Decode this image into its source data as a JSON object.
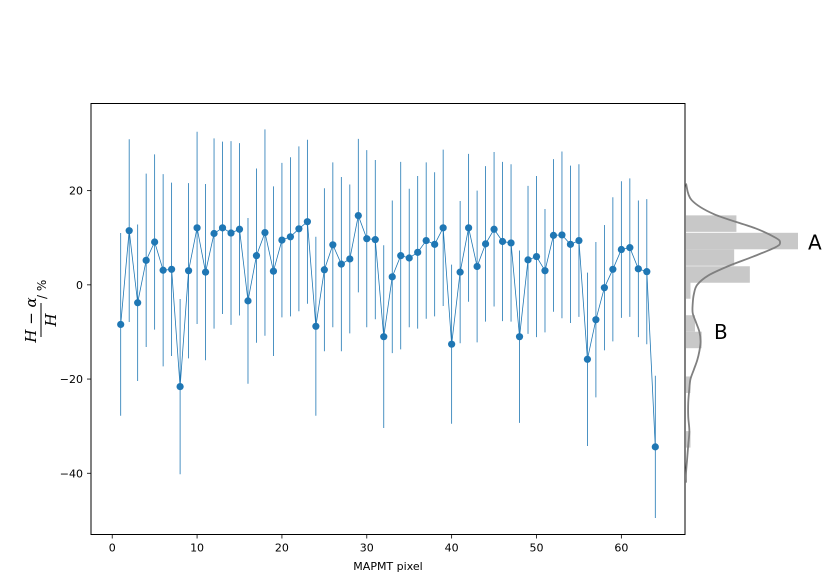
{
  "chart_data": {
    "type": "scatter",
    "xlabel": "MAPMT pixel",
    "ylabel": "(H − α)/H / %",
    "ylabel_parts": {
      "numerator": "H − α",
      "denominator": "H",
      "unit": "/ %"
    },
    "xlim": [
      -2.5,
      67.5
    ],
    "ylim": [
      -53,
      38.5
    ],
    "xticks": [
      0,
      10,
      20,
      30,
      40,
      50,
      60
    ],
    "yticks": [
      -40,
      -20,
      0,
      20
    ],
    "grid": false,
    "marker_color": "#1f77b4",
    "series": [
      {
        "x": [
          1,
          2,
          3,
          4,
          5,
          6,
          7,
          8,
          9,
          10,
          11,
          12,
          13,
          14,
          15,
          16,
          17,
          18,
          19,
          20,
          21,
          22,
          23,
          24,
          25,
          26,
          27,
          28,
          29,
          30,
          31,
          32,
          33,
          34,
          35,
          36,
          37,
          38,
          39,
          40,
          41,
          42,
          43,
          44,
          45,
          46,
          47,
          48,
          49,
          50,
          51,
          52,
          53,
          54,
          55,
          56,
          57,
          58,
          59,
          60,
          61,
          62,
          63,
          64
        ],
        "y": [
          -8.4,
          11.5,
          -3.8,
          5.2,
          9.1,
          3.1,
          3.3,
          -21.6,
          3.0,
          12.1,
          2.7,
          10.9,
          12.1,
          11.0,
          11.8,
          -3.4,
          6.2,
          11.1,
          2.9,
          9.5,
          10.2,
          11.9,
          13.4,
          -8.8,
          3.2,
          8.5,
          4.4,
          5.5,
          14.7,
          9.8,
          9.6,
          -11.0,
          1.7,
          6.2,
          5.7,
          6.9,
          9.4,
          8.6,
          12.1,
          -12.6,
          2.7,
          12.1,
          3.9,
          8.7,
          11.8,
          9.2,
          8.9,
          -11.0,
          5.3,
          6.0,
          3.0,
          10.5,
          10.6,
          8.6,
          9.4,
          -15.8,
          -7.4,
          -0.6,
          3.3,
          7.5,
          7.9,
          3.4,
          2.8,
          -34.4
        ],
        "yerr_low": [
          19.4,
          19.4,
          16.6,
          18.4,
          18.6,
          20.4,
          18.4,
          18.6,
          18.6,
          20.4,
          18.7,
          20.2,
          18.3,
          19.5,
          18.3,
          17.6,
          18.5,
          21.9,
          18.0,
          16.4,
          16.9,
          17.5,
          17.4,
          19.0,
          17.3,
          17.5,
          18.5,
          15.8,
          16.3,
          18.8,
          16.9,
          19.4,
          16.2,
          19.9,
          14.7,
          16.2,
          16.6,
          15.3,
          16.6,
          16.9,
          15.1,
          15.7,
          16.1,
          16.5,
          16.4,
          16.9,
          16.7,
          18.3,
          15.7,
          17.1,
          13.1,
          16.2,
          17.7,
          16.7,
          16.2,
          18.4,
          16.5,
          13.3,
          15.3,
          14.5,
          14.7,
          14.5,
          15.4,
          15.1
        ],
        "yerr_high": [
          19.4,
          19.4,
          16.6,
          18.4,
          18.6,
          20.4,
          18.4,
          18.6,
          18.6,
          20.4,
          18.7,
          20.2,
          18.3,
          19.5,
          18.3,
          17.6,
          18.5,
          21.9,
          18.0,
          16.4,
          16.9,
          17.5,
          17.4,
          19.0,
          17.3,
          17.5,
          18.5,
          15.8,
          16.3,
          18.8,
          16.9,
          19.4,
          16.2,
          19.9,
          14.7,
          16.2,
          16.6,
          15.3,
          16.6,
          16.9,
          15.1,
          15.7,
          16.1,
          16.5,
          16.4,
          16.9,
          16.7,
          18.3,
          15.7,
          17.1,
          13.1,
          16.2,
          17.7,
          16.7,
          16.2,
          18.4,
          16.5,
          13.3,
          15.3,
          14.5,
          14.7,
          14.5,
          15.4,
          15.1
        ]
      }
    ],
    "side_histogram": {
      "color": "#c8c8c8",
      "kde_color": "#808080",
      "bin_width": 3.5,
      "bins": [
        {
          "center": 13.0,
          "count": 0.45
        },
        {
          "center": 9.3,
          "count": 1.0
        },
        {
          "center": 5.8,
          "count": 0.43
        },
        {
          "center": 2.2,
          "count": 0.57
        },
        {
          "center": -1.2,
          "count": 0.04
        },
        {
          "center": -4.7,
          "count": 0.0
        },
        {
          "center": -8.2,
          "count": 0.08
        },
        {
          "center": -11.7,
          "count": 0.14
        },
        {
          "center": -21.2,
          "count": 0.04
        },
        {
          "center": -32.8,
          "count": 0.04
        }
      ],
      "kde": [
        [
          21.5,
          0.0
        ],
        [
          18,
          0.05
        ],
        [
          15,
          0.25
        ],
        [
          12,
          0.62
        ],
        [
          10,
          0.8
        ],
        [
          9,
          0.84
        ],
        [
          8,
          0.8
        ],
        [
          6,
          0.6
        ],
        [
          4,
          0.38
        ],
        [
          2,
          0.2
        ],
        [
          0,
          0.1
        ],
        [
          -2,
          0.07
        ],
        [
          -4,
          0.06
        ],
        [
          -6,
          0.06
        ],
        [
          -8,
          0.09
        ],
        [
          -10,
          0.12
        ],
        [
          -12,
          0.13
        ],
        [
          -14,
          0.12
        ],
        [
          -16,
          0.1
        ],
        [
          -18,
          0.07
        ],
        [
          -20,
          0.04
        ],
        [
          -22,
          0.03
        ],
        [
          -25,
          0.02
        ],
        [
          -28,
          0.02
        ],
        [
          -31,
          0.03
        ],
        [
          -34,
          0.02
        ],
        [
          -37,
          0.01
        ],
        [
          -40,
          0.0
        ],
        [
          -42,
          0.0
        ]
      ]
    },
    "annotations": [
      {
        "text": "A",
        "y": 9
      },
      {
        "text": "B",
        "y": -10
      }
    ]
  }
}
